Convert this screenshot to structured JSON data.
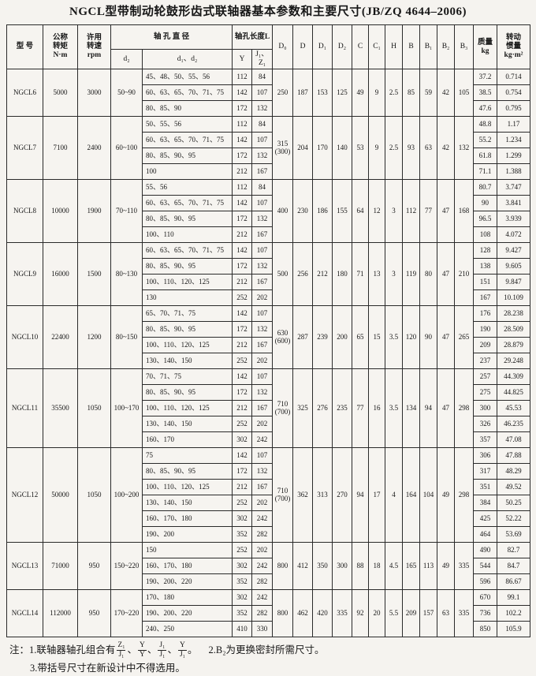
{
  "title": {
    "text": "NGCL型带制动轮鼓形齿式联轴器基本参数和主要尺寸",
    "standard": "(JB/ZQ 4644–2006)"
  },
  "header": {
    "model": "型  号",
    "torque": "公称\n转矩\nN·m",
    "speed": "许用\n转速\nrpm",
    "bore_dia": "轴 孔 直 径",
    "bore_len": "轴孔长度L",
    "d2": "d₂",
    "d1d2": "d₁、d₂",
    "Y": "Y",
    "J1Z1": "J₁、Z₁",
    "D0": "D₀",
    "D": "D",
    "D1": "D₁",
    "D2": "D₂",
    "C": "C",
    "C1": "C₁",
    "H": "H",
    "B": "B",
    "B1": "B₁",
    "B2": "B₂",
    "B3": "B₃",
    "mass": "质量\nkg",
    "inertia": "转动\n惯量\nkg·m²"
  },
  "groups": [
    {
      "model": "NGCL6",
      "torque": "5000",
      "speed": "3000",
      "range": "50~90",
      "shared": {
        "D0": "250",
        "D0_alt": "",
        "D": "187",
        "D1": "153",
        "D2": "125",
        "C": "49",
        "C1": "9",
        "H": "2.5",
        "B": "85",
        "B1": "59",
        "B2": "42",
        "B3": "105"
      },
      "rows": [
        {
          "bores": "45、48、50、55、56",
          "Y": "112",
          "JZ": "84",
          "mass": "37.2",
          "inertia": "0.714"
        },
        {
          "bores": "60、63、65、70、71、75",
          "Y": "142",
          "JZ": "107",
          "mass": "38.5",
          "inertia": "0.754"
        },
        {
          "bores": "80、85、90",
          "Y": "172",
          "JZ": "132",
          "mass": "47.6",
          "inertia": "0.795"
        }
      ]
    },
    {
      "model": "NGCL7",
      "torque": "7100",
      "speed": "2400",
      "range": "60~100",
      "shared": {
        "D0": "315",
        "D0_alt": "(300)",
        "D": "204",
        "D1": "170",
        "D2": "140",
        "C": "53",
        "C1": "9",
        "H": "2.5",
        "B": "93",
        "B1": "63",
        "B2": "42",
        "B3": "132"
      },
      "rows": [
        {
          "bores": "50、55、56",
          "Y": "112",
          "JZ": "84",
          "mass": "48.8",
          "inertia": "1.17"
        },
        {
          "bores": "60、63、65、70、71、75",
          "Y": "142",
          "JZ": "107",
          "mass": "55.2",
          "inertia": "1.234"
        },
        {
          "bores": "80、85、90、95",
          "Y": "172",
          "JZ": "132",
          "mass": "61.8",
          "inertia": "1.299"
        },
        {
          "bores": "100",
          "Y": "212",
          "JZ": "167",
          "mass": "71.1",
          "inertia": "1.388"
        }
      ]
    },
    {
      "model": "NGCL8",
      "torque": "10000",
      "speed": "1900",
      "range": "70~110",
      "shared": {
        "D0": "400",
        "D0_alt": "",
        "D": "230",
        "D1": "186",
        "D2": "155",
        "C": "64",
        "C1": "12",
        "H": "3",
        "B": "112",
        "B1": "77",
        "B2": "47",
        "B3": "168"
      },
      "rows": [
        {
          "bores": "55、56",
          "Y": "112",
          "JZ": "84",
          "mass": "80.7",
          "inertia": "3.747"
        },
        {
          "bores": "60、63、65、70、71、75",
          "Y": "142",
          "JZ": "107",
          "mass": "90",
          "inertia": "3.841"
        },
        {
          "bores": "80、85、90、95",
          "Y": "172",
          "JZ": "132",
          "mass": "96.5",
          "inertia": "3.939"
        },
        {
          "bores": "100、110",
          "Y": "212",
          "JZ": "167",
          "mass": "108",
          "inertia": "4.072"
        }
      ]
    },
    {
      "model": "NGCL9",
      "torque": "16000",
      "speed": "1500",
      "range": "80~130",
      "shared": {
        "D0": "500",
        "D0_alt": "",
        "D": "256",
        "D1": "212",
        "D2": "180",
        "C": "71",
        "C1": "13",
        "H": "3",
        "B": "119",
        "B1": "80",
        "B2": "47",
        "B3": "210"
      },
      "rows": [
        {
          "bores": "60、63、65、70、71、75",
          "Y": "142",
          "JZ": "107",
          "mass": "128",
          "inertia": "9.427"
        },
        {
          "bores": "80、85、90、95",
          "Y": "172",
          "JZ": "132",
          "mass": "138",
          "inertia": "9.605"
        },
        {
          "bores": "100、110、120、125",
          "Y": "212",
          "JZ": "167",
          "mass": "151",
          "inertia": "9.847"
        },
        {
          "bores": "130",
          "Y": "252",
          "JZ": "202",
          "mass": "167",
          "inertia": "10.109"
        }
      ]
    },
    {
      "model": "NGCL10",
      "torque": "22400",
      "speed": "1200",
      "range": "80~150",
      "shared": {
        "D0": "630",
        "D0_alt": "(600)",
        "D": "287",
        "D1": "239",
        "D2": "200",
        "C": "65",
        "C1": "15",
        "H": "3.5",
        "B": "120",
        "B1": "90",
        "B2": "47",
        "B3": "265"
      },
      "rows": [
        {
          "bores": "65、70、71、75",
          "Y": "142",
          "JZ": "107",
          "mass": "176",
          "inertia": "28.238"
        },
        {
          "bores": "80、85、90、95",
          "Y": "172",
          "JZ": "132",
          "mass": "190",
          "inertia": "28.509"
        },
        {
          "bores": "100、110、120、125",
          "Y": "212",
          "JZ": "167",
          "mass": "209",
          "inertia": "28.879"
        },
        {
          "bores": "130、140、150",
          "Y": "252",
          "JZ": "202",
          "mass": "237",
          "inertia": "29.248"
        }
      ]
    },
    {
      "model": "NGCL11",
      "torque": "35500",
      "speed": "1050",
      "range": "100~170",
      "shared": {
        "D0": "710",
        "D0_alt": "(700)",
        "D": "325",
        "D1": "276",
        "D2": "235",
        "C": "77",
        "C1": "16",
        "H": "3.5",
        "B": "134",
        "B1": "94",
        "B2": "47",
        "B3": "298"
      },
      "rows": [
        {
          "bores": "70、71、75",
          "Y": "142",
          "JZ": "107",
          "mass": "257",
          "inertia": "44.309"
        },
        {
          "bores": "80、85、90、95",
          "Y": "172",
          "JZ": "132",
          "mass": "275",
          "inertia": "44.825"
        },
        {
          "bores": "100、110、120、125",
          "Y": "212",
          "JZ": "167",
          "mass": "300",
          "inertia": "45.53"
        },
        {
          "bores": "130、140、150",
          "Y": "252",
          "JZ": "202",
          "mass": "326",
          "inertia": "46.235"
        },
        {
          "bores": "160、170",
          "Y": "302",
          "JZ": "242",
          "mass": "357",
          "inertia": "47.08"
        }
      ]
    },
    {
      "model": "NGCL12",
      "torque": "50000",
      "speed": "1050",
      "range": "100~200",
      "shared": {
        "D0": "710",
        "D0_alt": "(700)",
        "D": "362",
        "D1": "313",
        "D2": "270",
        "C": "94",
        "C1": "17",
        "H": "4",
        "B": "164",
        "B1": "104",
        "B2": "49",
        "B3": "298"
      },
      "rows": [
        {
          "bores": "75",
          "Y": "142",
          "JZ": "107",
          "mass": "306",
          "inertia": "47.88"
        },
        {
          "bores": "80、85、90、95",
          "Y": "172",
          "JZ": "132",
          "mass": "317",
          "inertia": "48.29"
        },
        {
          "bores": "100、110、120、125",
          "Y": "212",
          "JZ": "167",
          "mass": "351",
          "inertia": "49.52"
        },
        {
          "bores": "130、140、150",
          "Y": "252",
          "JZ": "202",
          "mass": "384",
          "inertia": "50.25"
        },
        {
          "bores": "160、170、180",
          "Y": "302",
          "JZ": "242",
          "mass": "425",
          "inertia": "52.22"
        },
        {
          "bores": "190、200",
          "Y": "352",
          "JZ": "282",
          "mass": "464",
          "inertia": "53.69"
        }
      ]
    },
    {
      "model": "NGCL13",
      "torque": "71000",
      "speed": "950",
      "range": "150~220",
      "shared": {
        "D0": "800",
        "D0_alt": "",
        "D": "412",
        "D1": "350",
        "D2": "300",
        "C": "88",
        "C1": "18",
        "H": "4.5",
        "B": "165",
        "B1": "113",
        "B2": "49",
        "B3": "335"
      },
      "rows": [
        {
          "bores": "150",
          "Y": "252",
          "JZ": "202",
          "mass": "490",
          "inertia": "82.7"
        },
        {
          "bores": "160、170、180",
          "Y": "302",
          "JZ": "242",
          "mass": "544",
          "inertia": "84.7"
        },
        {
          "bores": "190、200、220",
          "Y": "352",
          "JZ": "282",
          "mass": "596",
          "inertia": "86.67"
        }
      ]
    },
    {
      "model": "NGCL14",
      "torque": "112000",
      "speed": "950",
      "range": "170~220",
      "shared": {
        "D0": "800",
        "D0_alt": "",
        "D": "462",
        "D1": "420",
        "D2": "335",
        "C": "92",
        "C1": "20",
        "H": "5.5",
        "B": "209",
        "B1": "157",
        "B2": "63",
        "B3": "335"
      },
      "rows": [
        {
          "bores": "170、180",
          "Y": "302",
          "JZ": "242",
          "mass": "670",
          "inertia": "99.1"
        },
        {
          "bores": "190、200、220",
          "Y": "352",
          "JZ": "282",
          "mass": "736",
          "inertia": "102.2"
        },
        {
          "bores": "240、250",
          "Y": "410",
          "JZ": "330",
          "mass": "850",
          "inertia": "105.9"
        }
      ]
    }
  ],
  "notes": {
    "prefix": "注：1.联轴器轴孔组合有",
    "fractions": [
      {
        "t": "Z₁",
        "b": "J₁"
      },
      {
        "t": "Y",
        "b": "Y"
      },
      {
        "t": "J₁",
        "b": "J₁"
      },
      {
        "t": "Y",
        "b": "J₁"
      }
    ],
    "sep": "、",
    "suffix": "。",
    "note2": "2.B₂为更换密封所需尺寸。",
    "note3": "3.带括号尺寸在新设计中不得选用。"
  }
}
